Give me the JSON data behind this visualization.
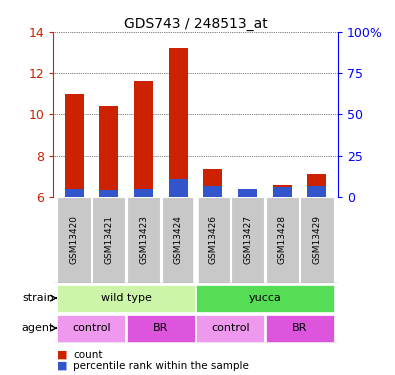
{
  "title": "GDS743 / 248513_at",
  "samples": [
    "GSM13420",
    "GSM13421",
    "GSM13423",
    "GSM13424",
    "GSM13426",
    "GSM13427",
    "GSM13428",
    "GSM13429"
  ],
  "count_values": [
    11.0,
    10.4,
    11.6,
    13.2,
    7.35,
    6.35,
    6.6,
    7.1
  ],
  "percentile_values": [
    6.4,
    6.35,
    6.4,
    6.85,
    6.55,
    6.4,
    6.5,
    6.55
  ],
  "bar_bottom": 6.0,
  "ylim": [
    6.0,
    14.0
  ],
  "yticks_left": [
    6,
    8,
    10,
    12,
    14
  ],
  "count_color": "#cc2200",
  "percentile_color": "#3355cc",
  "bar_width": 0.55,
  "sample_box_color": "#c8c8c8",
  "strain_info": [
    {
      "label": "wild type",
      "start": 0,
      "end": 3,
      "color": "#ccf5aa"
    },
    {
      "label": "yucca",
      "start": 4,
      "end": 7,
      "color": "#55dd55"
    }
  ],
  "agent_info": [
    {
      "label": "control",
      "start": 0,
      "end": 1,
      "color": "#ee99ee"
    },
    {
      "label": "BR",
      "start": 2,
      "end": 3,
      "color": "#dd55dd"
    },
    {
      "label": "control",
      "start": 4,
      "end": 5,
      "color": "#ee99ee"
    },
    {
      "label": "BR",
      "start": 6,
      "end": 7,
      "color": "#dd55dd"
    }
  ],
  "right_tick_labels": [
    "0",
    "25",
    "50",
    "75",
    "100%"
  ],
  "right_tick_positions": [
    6,
    8,
    10,
    12,
    14
  ]
}
